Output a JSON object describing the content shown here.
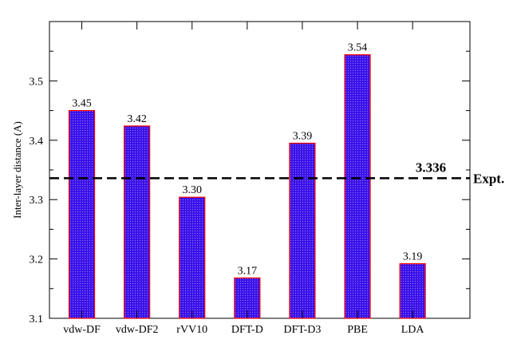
{
  "chart_data": {
    "type": "bar",
    "ylabel": "Inter-layer distance (A)",
    "xlabel": "",
    "ylim": [
      3.1,
      3.6
    ],
    "yticks": [
      "3.1",
      "3.2",
      "3.3",
      "3.4",
      "3.5"
    ],
    "categories": [
      "vdw-DF",
      "vdw-DF2",
      "rVV10",
      "DFT-D",
      "DFT-D3",
      "PBE",
      "LDA"
    ],
    "values": [
      3.45,
      3.424,
      3.304,
      3.168,
      3.395,
      3.544,
      3.192
    ],
    "value_labels": [
      "3.45",
      "3.42",
      "3.30",
      "3.17",
      "3.39",
      "3.54",
      "3.19"
    ],
    "reference_line": {
      "value": 3.336,
      "value_label": "3.336",
      "label": "Expt.",
      "style": "dashed"
    },
    "grid": false,
    "colors": {
      "bar_fill": "#3a10e8",
      "bar_stroke": "#ff0000",
      "ref_line": "#000000"
    }
  }
}
